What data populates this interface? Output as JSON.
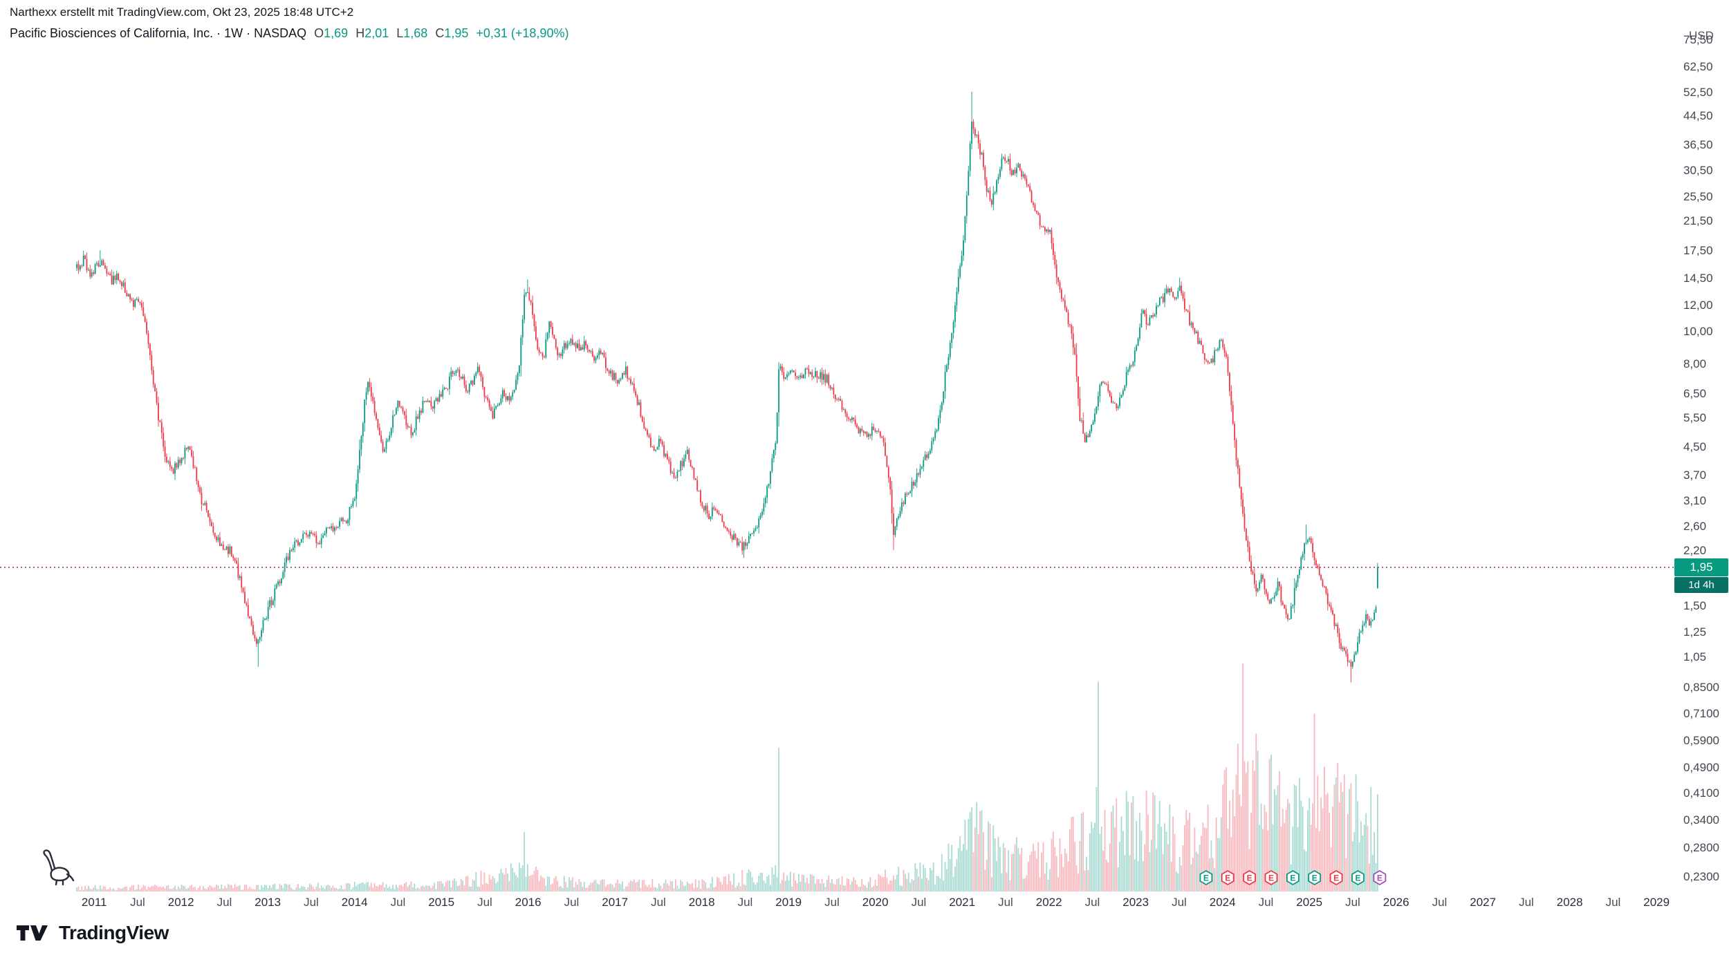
{
  "header": {
    "byline": "Narthexx erstellt mit TradingView.com, Okt 23, 2025 18:48 UTC+2",
    "symbol_text": "Pacific Biosciences of California, Inc. · 1W · NASDAQ",
    "ohlc": {
      "o_label": "O",
      "o": "1,69",
      "h_label": "H",
      "h": "2,01",
      "l_label": "L",
      "l": "1,68",
      "c_label": "C",
      "c": "1,95",
      "change": "+0,31 (+18,90%)"
    },
    "currency": "USD"
  },
  "price_scale": {
    "current_value": 1.95,
    "current_text": "1,95",
    "countdown": "1d 4h",
    "labels": [
      {
        "v": 75.5,
        "text": "75,50"
      },
      {
        "v": 62.5,
        "text": "62,50"
      },
      {
        "v": 52.5,
        "text": "52,50"
      },
      {
        "v": 44.5,
        "text": "44,50"
      },
      {
        "v": 36.5,
        "text": "36,50"
      },
      {
        "v": 30.5,
        "text": "30,50"
      },
      {
        "v": 25.5,
        "text": "25,50"
      },
      {
        "v": 21.5,
        "text": "21,50"
      },
      {
        "v": 17.5,
        "text": "17,50"
      },
      {
        "v": 14.5,
        "text": "14,50"
      },
      {
        "v": 12.0,
        "text": "12,00"
      },
      {
        "v": 10.0,
        "text": "10,00"
      },
      {
        "v": 8.0,
        "text": "8,00"
      },
      {
        "v": 6.5,
        "text": "6,50"
      },
      {
        "v": 5.5,
        "text": "5,50"
      },
      {
        "v": 4.5,
        "text": "4,50"
      },
      {
        "v": 3.7,
        "text": "3,70"
      },
      {
        "v": 3.1,
        "text": "3,10"
      },
      {
        "v": 2.6,
        "text": "2,60"
      },
      {
        "v": 2.2,
        "text": "2,20"
      },
      {
        "v": 1.5,
        "text": "1,50"
      },
      {
        "v": 1.25,
        "text": "1,25"
      },
      {
        "v": 1.05,
        "text": "1,05"
      },
      {
        "v": 0.85,
        "text": "0,8500"
      },
      {
        "v": 0.71,
        "text": "0,7100"
      },
      {
        "v": 0.59,
        "text": "0,5900"
      },
      {
        "v": 0.49,
        "text": "0,4900"
      },
      {
        "v": 0.41,
        "text": "0,4100"
      },
      {
        "v": 0.34,
        "text": "0,3400"
      },
      {
        "v": 0.28,
        "text": "0,2800"
      },
      {
        "v": 0.23,
        "text": "0,2300"
      }
    ]
  },
  "time_scale": {
    "labels": [
      {
        "t": 2011,
        "text": "2011",
        "year": true
      },
      {
        "t": 2011.5,
        "text": "Jul",
        "year": false
      },
      {
        "t": 2012,
        "text": "2012",
        "year": true
      },
      {
        "t": 2012.5,
        "text": "Jul",
        "year": false
      },
      {
        "t": 2013,
        "text": "2013",
        "year": true
      },
      {
        "t": 2013.5,
        "text": "Jul",
        "year": false
      },
      {
        "t": 2014,
        "text": "2014",
        "year": true
      },
      {
        "t": 2014.5,
        "text": "Jul",
        "year": false
      },
      {
        "t": 2015,
        "text": "2015",
        "year": true
      },
      {
        "t": 2015.5,
        "text": "Jul",
        "year": false
      },
      {
        "t": 2016,
        "text": "2016",
        "year": true
      },
      {
        "t": 2016.5,
        "text": "Jul",
        "year": false
      },
      {
        "t": 2017,
        "text": "2017",
        "year": true
      },
      {
        "t": 2017.5,
        "text": "Jul",
        "year": false
      },
      {
        "t": 2018,
        "text": "2018",
        "year": true
      },
      {
        "t": 2018.5,
        "text": "Jul",
        "year": false
      },
      {
        "t": 2019,
        "text": "2019",
        "year": true
      },
      {
        "t": 2019.5,
        "text": "Jul",
        "year": false
      },
      {
        "t": 2020,
        "text": "2020",
        "year": true
      },
      {
        "t": 2020.5,
        "text": "Jul",
        "year": false
      },
      {
        "t": 2021,
        "text": "2021",
        "year": true
      },
      {
        "t": 2021.5,
        "text": "Jul",
        "year": false
      },
      {
        "t": 2022,
        "text": "2022",
        "year": true
      },
      {
        "t": 2022.5,
        "text": "Jul",
        "year": false
      },
      {
        "t": 2023,
        "text": "2023",
        "year": true
      },
      {
        "t": 2023.5,
        "text": "Jul",
        "year": false
      },
      {
        "t": 2024,
        "text": "2024",
        "year": true
      },
      {
        "t": 2024.5,
        "text": "Jul",
        "year": false
      },
      {
        "t": 2025,
        "text": "2025",
        "year": true
      },
      {
        "t": 2025.5,
        "text": "Jul",
        "year": false
      },
      {
        "t": 2026,
        "text": "2026",
        "year": true
      },
      {
        "t": 2026.5,
        "text": "Jul",
        "year": false
      },
      {
        "t": 2027,
        "text": "2027",
        "year": true
      },
      {
        "t": 2027.5,
        "text": "Jul",
        "year": false
      },
      {
        "t": 2028,
        "text": "2028",
        "year": true
      },
      {
        "t": 2028.5,
        "text": "Jul",
        "year": false
      },
      {
        "t": 2029,
        "text": "2029",
        "year": true
      }
    ]
  },
  "earnings_markers": [
    {
      "t": 2023.81,
      "status": "beat"
    },
    {
      "t": 2024.06,
      "status": "miss"
    },
    {
      "t": 2024.31,
      "status": "miss"
    },
    {
      "t": 2024.56,
      "status": "miss"
    },
    {
      "t": 2024.81,
      "status": "beat"
    },
    {
      "t": 2025.06,
      "status": "beat"
    },
    {
      "t": 2025.31,
      "status": "miss"
    },
    {
      "t": 2025.56,
      "status": "beat"
    },
    {
      "t": 2025.81,
      "status": "upcoming"
    }
  ],
  "footer": {
    "brand": "TradingView"
  },
  "colors": {
    "up": "#089981",
    "down": "#f23645",
    "price_line": "#953a80",
    "countdown_bg": "#077166",
    "header_text": "#131722",
    "axis_text": "#41464f",
    "earnings_beat": "#089981",
    "earnings_miss": "#f23645",
    "earnings_upcoming": "#ab47bc",
    "volume_opacity": 0.35,
    "drawing": "#2a2e39"
  },
  "chart_data": {
    "type": "candlestick",
    "title": "Pacific Biosciences of California, Inc.",
    "interval": "1W",
    "exchange": "NASDAQ",
    "currency": "USD",
    "scale": "log",
    "x_range": [
      2010.8,
      2029.0
    ],
    "visible_price_range": [
      0.23,
      75.5
    ],
    "last": {
      "open": 1.69,
      "high": 2.01,
      "low": 1.68,
      "close": 1.95,
      "change": "+0,31 (+18,90%)"
    },
    "price_anchors": [
      [
        2010.8,
        15.5
      ],
      [
        2010.88,
        16.4
      ],
      [
        2010.96,
        14.8
      ],
      [
        2011.04,
        16.2
      ],
      [
        2011.12,
        15.6
      ],
      [
        2011.2,
        14.0
      ],
      [
        2011.28,
        14.6
      ],
      [
        2011.36,
        13.2
      ],
      [
        2011.44,
        12.2
      ],
      [
        2011.54,
        12.5
      ],
      [
        2011.62,
        9.2
      ],
      [
        2011.7,
        6.4
      ],
      [
        2011.8,
        4.4
      ],
      [
        2011.9,
        3.8
      ],
      [
        2012.0,
        4.1
      ],
      [
        2012.08,
        4.6
      ],
      [
        2012.16,
        3.8
      ],
      [
        2012.24,
        3.1
      ],
      [
        2012.32,
        2.8
      ],
      [
        2012.4,
        2.4
      ],
      [
        2012.48,
        2.2
      ],
      [
        2012.56,
        2.2
      ],
      [
        2012.64,
        1.95
      ],
      [
        2012.72,
        1.6
      ],
      [
        2012.8,
        1.3
      ],
      [
        2012.88,
        1.15
      ],
      [
        2012.96,
        1.35
      ],
      [
        2013.04,
        1.55
      ],
      [
        2013.12,
        1.75
      ],
      [
        2013.2,
        2.0
      ],
      [
        2013.28,
        2.2
      ],
      [
        2013.36,
        2.35
      ],
      [
        2013.44,
        2.5
      ],
      [
        2013.52,
        2.4
      ],
      [
        2013.6,
        2.3
      ],
      [
        2013.68,
        2.5
      ],
      [
        2013.76,
        2.55
      ],
      [
        2013.84,
        2.65
      ],
      [
        2013.92,
        2.75
      ],
      [
        2014.0,
        3.2
      ],
      [
        2014.06,
        4.3
      ],
      [
        2014.12,
        6.2
      ],
      [
        2014.16,
        7.2
      ],
      [
        2014.22,
        6.0
      ],
      [
        2014.28,
        4.8
      ],
      [
        2014.34,
        4.4
      ],
      [
        2014.42,
        5.2
      ],
      [
        2014.5,
        6.3
      ],
      [
        2014.58,
        5.4
      ],
      [
        2014.66,
        5.0
      ],
      [
        2014.74,
        5.6
      ],
      [
        2014.82,
        6.4
      ],
      [
        2014.9,
        6.0
      ],
      [
        2014.98,
        6.4
      ],
      [
        2015.06,
        6.8
      ],
      [
        2015.12,
        7.4
      ],
      [
        2015.18,
        7.8
      ],
      [
        2015.24,
        7.2
      ],
      [
        2015.3,
        6.6
      ],
      [
        2015.36,
        7.0
      ],
      [
        2015.42,
        7.6
      ],
      [
        2015.48,
        6.8
      ],
      [
        2015.54,
        5.9
      ],
      [
        2015.6,
        5.6
      ],
      [
        2015.66,
        6.1
      ],
      [
        2015.72,
        6.6
      ],
      [
        2015.78,
        6.2
      ],
      [
        2015.84,
        6.9
      ],
      [
        2015.9,
        8.0
      ],
      [
        2015.95,
        12.5
      ],
      [
        2016.0,
        13.2
      ],
      [
        2016.06,
        10.8
      ],
      [
        2016.12,
        8.6
      ],
      [
        2016.18,
        8.3
      ],
      [
        2016.24,
        10.5
      ],
      [
        2016.3,
        9.3
      ],
      [
        2016.36,
        8.3
      ],
      [
        2016.42,
        9.0
      ],
      [
        2016.48,
        9.6
      ],
      [
        2016.54,
        9.2
      ],
      [
        2016.6,
        8.7
      ],
      [
        2016.66,
        9.3
      ],
      [
        2016.72,
        8.8
      ],
      [
        2016.78,
        8.2
      ],
      [
        2016.84,
        8.6
      ],
      [
        2016.9,
        7.9
      ],
      [
        2016.96,
        7.4
      ],
      [
        2017.04,
        7.1
      ],
      [
        2017.12,
        7.6
      ],
      [
        2017.2,
        6.8
      ],
      [
        2017.28,
        5.9
      ],
      [
        2017.36,
        5.0
      ],
      [
        2017.44,
        4.4
      ],
      [
        2017.52,
        4.7
      ],
      [
        2017.6,
        4.1
      ],
      [
        2017.68,
        3.6
      ],
      [
        2017.76,
        3.95
      ],
      [
        2017.84,
        4.3
      ],
      [
        2017.92,
        3.5
      ],
      [
        2018.0,
        3.05
      ],
      [
        2018.08,
        2.8
      ],
      [
        2018.16,
        2.95
      ],
      [
        2018.24,
        2.7
      ],
      [
        2018.32,
        2.5
      ],
      [
        2018.4,
        2.35
      ],
      [
        2018.48,
        2.25
      ],
      [
        2018.56,
        2.45
      ],
      [
        2018.64,
        2.65
      ],
      [
        2018.72,
        2.95
      ],
      [
        2018.8,
        3.95
      ],
      [
        2018.85,
        4.6
      ],
      [
        2018.89,
        7.7
      ],
      [
        2018.95,
        7.4
      ],
      [
        2019.05,
        7.5
      ],
      [
        2019.15,
        7.45
      ],
      [
        2019.25,
        7.55
      ],
      [
        2019.35,
        7.4
      ],
      [
        2019.45,
        7.2
      ],
      [
        2019.53,
        6.3
      ],
      [
        2019.61,
        5.95
      ],
      [
        2019.7,
        5.45
      ],
      [
        2019.8,
        5.05
      ],
      [
        2019.9,
        4.85
      ],
      [
        2020.0,
        5.1
      ],
      [
        2020.08,
        4.75
      ],
      [
        2020.15,
        3.8
      ],
      [
        2020.21,
        2.5
      ],
      [
        2020.29,
        2.95
      ],
      [
        2020.37,
        3.25
      ],
      [
        2020.45,
        3.55
      ],
      [
        2020.53,
        3.9
      ],
      [
        2020.61,
        4.4
      ],
      [
        2020.69,
        4.85
      ],
      [
        2020.77,
        6.4
      ],
      [
        2020.83,
        8.2
      ],
      [
        2020.89,
        10.4
      ],
      [
        2020.95,
        13.8
      ],
      [
        2021.01,
        18.0
      ],
      [
        2021.06,
        28.0
      ],
      [
        2021.11,
        43.0
      ],
      [
        2021.16,
        38.5
      ],
      [
        2021.22,
        34.0
      ],
      [
        2021.28,
        26.5
      ],
      [
        2021.34,
        24.5
      ],
      [
        2021.4,
        28.5
      ],
      [
        2021.46,
        33.5
      ],
      [
        2021.52,
        32.5
      ],
      [
        2021.58,
        30.0
      ],
      [
        2021.64,
        31.0
      ],
      [
        2021.7,
        29.5
      ],
      [
        2021.76,
        26.5
      ],
      [
        2021.82,
        24.5
      ],
      [
        2021.88,
        21.5
      ],
      [
        2021.94,
        20.5
      ],
      [
        2022.0,
        20.5
      ],
      [
        2022.06,
        16.5
      ],
      [
        2022.12,
        13.2
      ],
      [
        2022.18,
        11.6
      ],
      [
        2022.24,
        10.4
      ],
      [
        2022.3,
        8.2
      ],
      [
        2022.36,
        5.4
      ],
      [
        2022.42,
        4.7
      ],
      [
        2022.48,
        5.1
      ],
      [
        2022.54,
        5.6
      ],
      [
        2022.6,
        7.3
      ],
      [
        2022.66,
        6.8
      ],
      [
        2022.72,
        6.2
      ],
      [
        2022.78,
        5.9
      ],
      [
        2022.84,
        6.6
      ],
      [
        2022.9,
        7.5
      ],
      [
        2022.96,
        8.1
      ],
      [
        2023.02,
        9.6
      ],
      [
        2023.08,
        11.4
      ],
      [
        2023.14,
        10.4
      ],
      [
        2023.2,
        11.2
      ],
      [
        2023.26,
        12.0
      ],
      [
        2023.32,
        12.7
      ],
      [
        2023.38,
        13.4
      ],
      [
        2023.44,
        12.5
      ],
      [
        2023.5,
        13.6
      ],
      [
        2023.56,
        12.1
      ],
      [
        2023.62,
        10.8
      ],
      [
        2023.68,
        10.0
      ],
      [
        2023.74,
        9.1
      ],
      [
        2023.8,
        8.4
      ],
      [
        2023.86,
        7.9
      ],
      [
        2023.92,
        8.7
      ],
      [
        2023.98,
        9.5
      ],
      [
        2024.04,
        8.4
      ],
      [
        2024.1,
        6.0
      ],
      [
        2024.16,
        4.1
      ],
      [
        2024.22,
        3.05
      ],
      [
        2024.28,
        2.25
      ],
      [
        2024.34,
        1.9
      ],
      [
        2024.4,
        1.65
      ],
      [
        2024.46,
        1.85
      ],
      [
        2024.52,
        1.52
      ],
      [
        2024.58,
        1.62
      ],
      [
        2024.64,
        1.75
      ],
      [
        2024.7,
        1.45
      ],
      [
        2024.76,
        1.35
      ],
      [
        2024.82,
        1.6
      ],
      [
        2024.88,
        1.9
      ],
      [
        2024.94,
        2.28
      ],
      [
        2025.0,
        2.4
      ],
      [
        2025.06,
        2.1
      ],
      [
        2025.12,
        1.9
      ],
      [
        2025.18,
        1.62
      ],
      [
        2025.24,
        1.45
      ],
      [
        2025.3,
        1.3
      ],
      [
        2025.36,
        1.15
      ],
      [
        2025.42,
        1.05
      ],
      [
        2025.48,
        0.99
      ],
      [
        2025.54,
        1.12
      ],
      [
        2025.6,
        1.28
      ],
      [
        2025.66,
        1.4
      ],
      [
        2025.72,
        1.3
      ],
      [
        2025.78,
        1.55
      ],
      [
        2025.795,
        1.95
      ]
    ],
    "extremes": [
      {
        "t": 2011.06,
        "high": 17.5
      },
      {
        "t": 2012.88,
        "low": 0.98
      },
      {
        "t": 2016.0,
        "high": 14.3
      },
      {
        "t": 2018.49,
        "low": 2.08
      },
      {
        "t": 2020.21,
        "low": 2.2
      },
      {
        "t": 2021.11,
        "high": 52.5
      },
      {
        "t": 2023.5,
        "high": 14.5
      },
      {
        "t": 2024.97,
        "high": 2.62
      },
      {
        "t": 2025.48,
        "low": 0.88
      }
    ],
    "volume_anchors": [
      [
        2010.8,
        0.018
      ],
      [
        2012.0,
        0.02
      ],
      [
        2013.0,
        0.022
      ],
      [
        2014.0,
        0.028
      ],
      [
        2015.0,
        0.03
      ],
      [
        2015.9,
        0.09
      ],
      [
        2016.3,
        0.05
      ],
      [
        2017.0,
        0.035
      ],
      [
        2018.0,
        0.035
      ],
      [
        2018.8,
        0.08
      ],
      [
        2019.2,
        0.05
      ],
      [
        2019.8,
        0.04
      ],
      [
        2020.2,
        0.07
      ],
      [
        2020.7,
        0.09
      ],
      [
        2020.95,
        0.18
      ],
      [
        2021.15,
        0.26
      ],
      [
        2021.5,
        0.16
      ],
      [
        2021.9,
        0.14
      ],
      [
        2022.2,
        0.2
      ],
      [
        2022.5,
        0.3
      ],
      [
        2022.8,
        0.28
      ],
      [
        2023.1,
        0.3
      ],
      [
        2023.5,
        0.26
      ],
      [
        2023.9,
        0.28
      ],
      [
        2024.1,
        0.4
      ],
      [
        2024.3,
        0.5
      ],
      [
        2024.5,
        0.38
      ],
      [
        2024.8,
        0.36
      ],
      [
        2025.0,
        0.42
      ],
      [
        2025.2,
        0.4
      ],
      [
        2025.5,
        0.34
      ],
      [
        2025.79,
        0.3
      ]
    ],
    "volume_spikes": [
      [
        2015.96,
        0.26
      ],
      [
        2018.89,
        0.63
      ],
      [
        2022.56,
        0.92
      ],
      [
        2024.24,
        1.0
      ],
      [
        2024.56,
        0.6
      ],
      [
        2025.05,
        0.78
      ],
      [
        2025.3,
        0.5
      ]
    ]
  }
}
